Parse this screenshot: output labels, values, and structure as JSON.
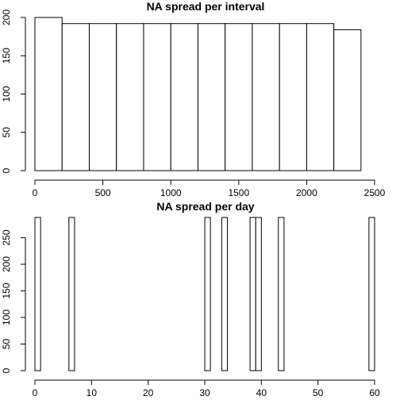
{
  "chart_data": [
    {
      "type": "bar",
      "title": "NA spread per interval",
      "xlabel": "",
      "ylabel": "",
      "bin_edges": [
        0,
        200,
        400,
        600,
        800,
        1000,
        1200,
        1400,
        1600,
        1800,
        2000,
        2200,
        2400
      ],
      "values": [
        200,
        192,
        192,
        192,
        192,
        192,
        192,
        192,
        192,
        192,
        192,
        184
      ],
      "xlim": [
        0,
        2500
      ],
      "ylim": [
        0,
        200
      ],
      "xticks": [
        0,
        500,
        1000,
        1500,
        2000,
        2500
      ],
      "xtick_labels": [
        "0",
        "500",
        "1000",
        "1500",
        "2000",
        "2500"
      ],
      "yticks": [
        0,
        50,
        100,
        150,
        200
      ],
      "ytick_labels": [
        "0",
        "50",
        "100",
        "150",
        "200"
      ],
      "grid": false,
      "colors": {
        "fill": "#ffffff",
        "stroke": "#000000"
      }
    },
    {
      "type": "bar",
      "title": "NA spread per day",
      "xlabel": "",
      "ylabel": "",
      "bin_edges": [
        0,
        1,
        6,
        7,
        30,
        31,
        33,
        34,
        38,
        39,
        40,
        43,
        44,
        59,
        60
      ],
      "values": [
        288,
        0,
        288,
        0,
        288,
        0,
        288,
        0,
        288,
        288,
        0,
        288,
        0,
        288
      ],
      "xlim": [
        0,
        60
      ],
      "ylim": [
        0,
        288
      ],
      "xticks": [
        0,
        10,
        20,
        30,
        40,
        50,
        60
      ],
      "xtick_labels": [
        "0",
        "10",
        "20",
        "30",
        "40",
        "50",
        "60"
      ],
      "yticks": [
        0,
        50,
        100,
        150,
        200,
        250
      ],
      "ytick_labels": [
        "0",
        "50",
        "100",
        "150",
        "200",
        "250"
      ],
      "grid": false,
      "colors": {
        "fill": "#ffffff",
        "stroke": "#000000"
      }
    }
  ]
}
